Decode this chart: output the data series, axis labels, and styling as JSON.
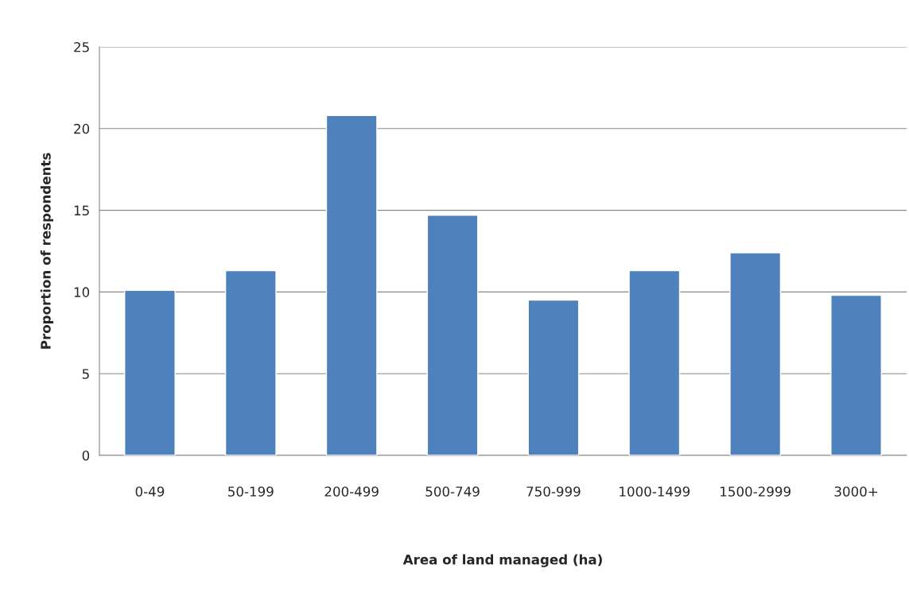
{
  "chart_data": {
    "type": "bar",
    "xlabel": "Area of land managed (ha)",
    "ylabel": "Proportion of respondents",
    "categories": [
      "0-49",
      "50-199",
      "200-499",
      "500-749",
      "750-999",
      "1000-1499",
      "1500-2999",
      "3000+"
    ],
    "values": [
      10.1,
      11.3,
      20.8,
      14.7,
      9.5,
      11.3,
      12.4,
      9.8
    ],
    "color": "#4f81bd",
    "ylim": [
      0,
      25
    ],
    "yticks": [
      0,
      5,
      10,
      15,
      20,
      25
    ],
    "grid": "y"
  }
}
